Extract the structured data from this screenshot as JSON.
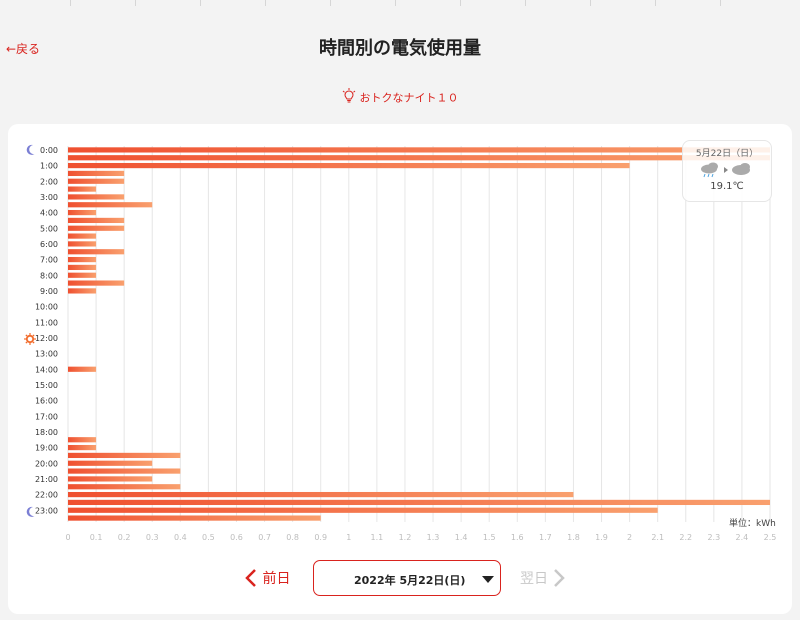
{
  "header": {
    "back_label": "←戻る",
    "title": "時間別の電気使用量"
  },
  "plan": {
    "name": "おトクなナイト１０",
    "icon": "lightbulb-icon"
  },
  "weather": {
    "date": "5月22日（日）",
    "temp": "19.1℃",
    "icons": [
      "rain-cloud-icon",
      "cloud-icon"
    ]
  },
  "unit_label": "単位：kWh",
  "nav": {
    "prev_label": "前日",
    "next_label": "翌日",
    "selected_date": "2022年 5月22日(日)"
  },
  "colors": {
    "accent": "#d9231e",
    "bar_start": "#ef5030",
    "bar_end": "#f9a06e",
    "night_icon": "#7b7fd4",
    "day_icon": "#f26b2a"
  },
  "chart_data": {
    "type": "bar",
    "orientation": "horizontal",
    "xlim": [
      0,
      2.5
    ],
    "x_ticks": [
      "0",
      "0.1",
      "0.2",
      "0.3",
      "0.4",
      "0.5",
      "0.6",
      "0.7",
      "0.8",
      "0.9",
      "1",
      "1.1",
      "1.2",
      "1.3",
      "1.4",
      "1.5",
      "1.6",
      "1.7",
      "1.8",
      "1.9",
      "2",
      "2.1",
      "2.2",
      "2.3",
      "2.4",
      "2.5"
    ],
    "hour_labels": [
      "0:00",
      "1:00",
      "2:00",
      "3:00",
      "4:00",
      "5:00",
      "6:00",
      "7:00",
      "8:00",
      "9:00",
      "10:00",
      "11:00",
      "12:00",
      "13:00",
      "14:00",
      "15:00",
      "16:00",
      "17:00",
      "18:00",
      "19:00",
      "20:00",
      "21:00",
      "22:00",
      "23:00"
    ],
    "values": [
      2.5,
      2.5,
      2.0,
      0.2,
      0.2,
      0.1,
      0.2,
      0.3,
      0.1,
      0.2,
      0.2,
      0.1,
      0.1,
      0.2,
      0.1,
      0.1,
      0.1,
      0.2,
      0.1,
      0,
      0,
      0,
      0,
      0,
      0,
      0,
      0,
      0,
      0.1,
      0,
      0,
      0,
      0,
      0,
      0,
      0,
      0,
      0.1,
      0.1,
      0.4,
      0.3,
      0.4,
      0.3,
      0.4,
      1.8,
      2.5,
      2.1,
      0.9
    ],
    "grid": true
  }
}
